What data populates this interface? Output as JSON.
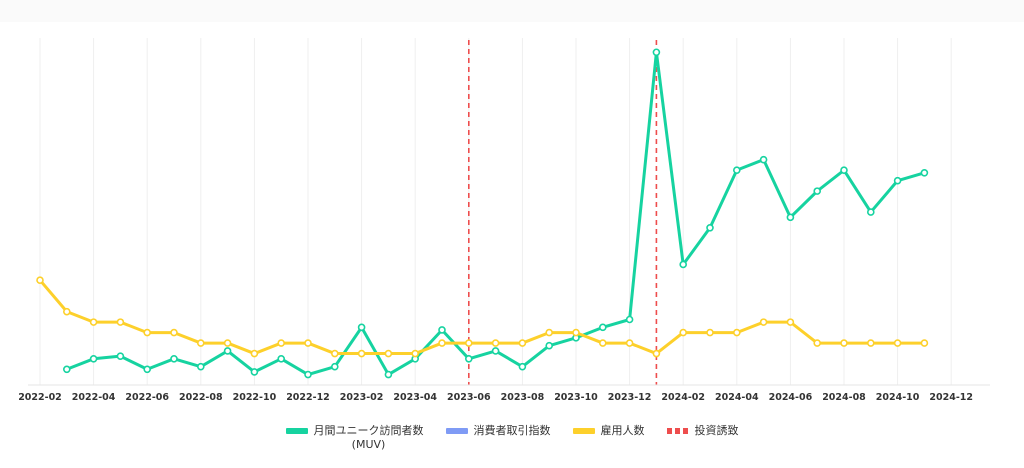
{
  "chart_data": {
    "type": "line",
    "x_ticks": [
      "2022-02",
      "2022-04",
      "2022-06",
      "2022-08",
      "2022-10",
      "2022-12",
      "2023-02",
      "2023-04",
      "2023-06",
      "2023-08",
      "2023-10",
      "2023-12",
      "2024-02",
      "2024-04",
      "2024-06",
      "2024-08",
      "2024-10",
      "2024-12"
    ],
    "series": [
      {
        "name": "月間ユニーク訪問者数\n(MUV)",
        "color": "#16d3a0",
        "x": [
          "2022-03",
          "2022-04",
          "2022-05",
          "2022-06",
          "2022-07",
          "2022-08",
          "2022-09",
          "2022-10",
          "2022-11",
          "2022-12",
          "2023-01",
          "2023-02",
          "2023-03",
          "2023-04",
          "2023-05",
          "2023-06",
          "2023-07",
          "2023-08",
          "2023-09",
          "2023-10",
          "2023-11",
          "2023-12",
          "2024-01",
          "2024-02",
          "2024-03",
          "2024-04",
          "2024-05",
          "2024-06",
          "2024-07",
          "2024-08",
          "2024-09",
          "2024-10",
          "2024-11"
        ],
        "values": [
          6,
          10,
          11,
          6,
          10,
          7,
          13,
          5,
          10,
          4,
          7,
          22,
          4,
          10,
          21,
          10,
          13,
          7,
          15,
          18,
          22,
          25,
          127,
          46,
          60,
          82,
          86,
          64,
          74,
          82,
          66,
          78,
          81
        ]
      },
      {
        "name": "消費者取引指数",
        "color": "#7f9bf5",
        "x": [],
        "values": []
      },
      {
        "name": "雇用人数",
        "color": "#fdd02b",
        "x": [
          "2022-02",
          "2022-03",
          "2022-04",
          "2022-05",
          "2022-06",
          "2022-07",
          "2022-08",
          "2022-09",
          "2022-10",
          "2022-11",
          "2022-12",
          "2023-01",
          "2023-02",
          "2023-03",
          "2023-04",
          "2023-05",
          "2023-06",
          "2023-07",
          "2023-08",
          "2023-09",
          "2023-10",
          "2023-11",
          "2023-12",
          "2024-01",
          "2024-02",
          "2024-03",
          "2024-04",
          "2024-05",
          "2024-06",
          "2024-07",
          "2024-08",
          "2024-09",
          "2024-10",
          "2024-11"
        ],
        "values": [
          40,
          28,
          24,
          24,
          20,
          20,
          16,
          16,
          12,
          16,
          16,
          12,
          12,
          12,
          12,
          16,
          16,
          16,
          16,
          20,
          20,
          16,
          16,
          12,
          20,
          20,
          20,
          24,
          24,
          16,
          16,
          16,
          16,
          16
        ]
      }
    ],
    "events": {
      "name": "投資誘致",
      "color": "#ee4d4d",
      "x": [
        "2023-06",
        "2024-01"
      ]
    },
    "legend_position": "bottom",
    "grid": "vertical"
  }
}
